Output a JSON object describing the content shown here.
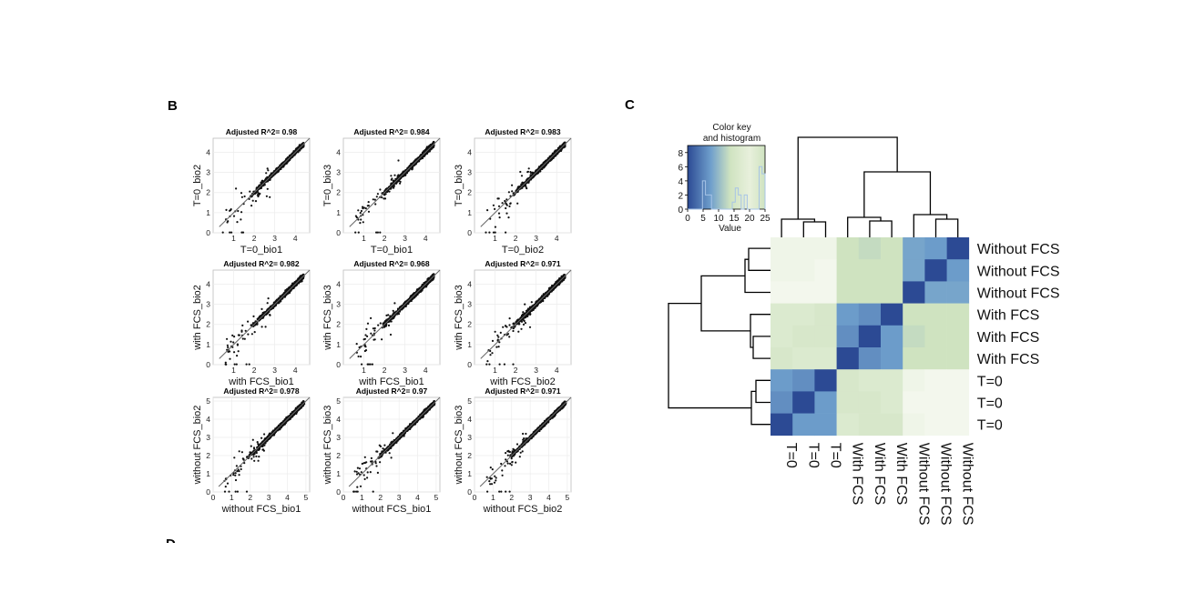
{
  "panels": {
    "b_label": "B",
    "c_label": "C",
    "d_label_partial": "D"
  },
  "chart_data": [
    {
      "type": "scatter",
      "panel": "B",
      "grid_rows": 3,
      "grid_cols": 3,
      "plots": [
        {
          "title": "Adjusted R^2= 0.98",
          "xlabel": "T=0_bio1",
          "ylabel": "T=0_bio2",
          "xticks": [
            1,
            2,
            3,
            4
          ],
          "yticks": [
            0,
            1,
            2,
            3,
            4
          ],
          "range": [
            0,
            4.7
          ],
          "fit_slope": 1.0,
          "fit_intercept": 0.0,
          "seed": 11
        },
        {
          "title": "Adjusted R^2= 0.984",
          "xlabel": "T=0_bio1",
          "ylabel": "T=0_bio3",
          "xticks": [
            1,
            2,
            3,
            4
          ],
          "yticks": [
            0,
            1,
            2,
            3,
            4
          ],
          "range": [
            0,
            4.7
          ],
          "fit_slope": 1.0,
          "fit_intercept": 0.0,
          "seed": 23
        },
        {
          "title": "Adjusted R^2= 0.983",
          "xlabel": "T=0_bio2",
          "ylabel": "T=0_bio3",
          "xticks": [
            1,
            2,
            3,
            4
          ],
          "yticks": [
            0,
            1,
            2,
            3,
            4
          ],
          "range": [
            0,
            4.7
          ],
          "fit_slope": 1.0,
          "fit_intercept": 0.0,
          "seed": 37
        },
        {
          "title": "Adjusted R^2= 0.982",
          "xlabel": "with FCS_bio1",
          "ylabel": "with FCS_bio2",
          "xticks": [
            1,
            2,
            3,
            4
          ],
          "yticks": [
            0,
            1,
            2,
            3,
            4
          ],
          "range": [
            0,
            4.7
          ],
          "fit_slope": 1.0,
          "fit_intercept": 0.0,
          "seed": 41
        },
        {
          "title": "Adjusted R^2= 0.968",
          "xlabel": "with FCS_bio1",
          "ylabel": "with FCS_bio3",
          "xticks": [
            1,
            2,
            3,
            4
          ],
          "yticks": [
            0,
            1,
            2,
            3,
            4
          ],
          "range": [
            0,
            4.7
          ],
          "fit_slope": 1.0,
          "fit_intercept": 0.0,
          "seed": 53
        },
        {
          "title": "Adjusted R^2= 0.971",
          "xlabel": "with FCS_bio2",
          "ylabel": "with FCS_bio3",
          "xticks": [
            1,
            2,
            3,
            4
          ],
          "yticks": [
            0,
            1,
            2,
            3,
            4
          ],
          "range": [
            0,
            4.7
          ],
          "fit_slope": 1.0,
          "fit_intercept": 0.0,
          "seed": 67
        },
        {
          "title": "Adjusted R^2= 0.978",
          "xlabel": "without FCS_bio1",
          "ylabel": "without FCS_bio2",
          "xticks": [
            0,
            1,
            2,
            3,
            4,
            5
          ],
          "yticks": [
            0,
            1,
            2,
            3,
            4,
            5
          ],
          "range": [
            0,
            5.2
          ],
          "fit_slope": 1.0,
          "fit_intercept": 0.0,
          "seed": 71
        },
        {
          "title": "Adjusted R^2= 0.97",
          "xlabel": "without FCS_bio1",
          "ylabel": "without FCS_bio3",
          "xticks": [
            0,
            1,
            2,
            3,
            4,
            5
          ],
          "yticks": [
            0,
            1,
            2,
            3,
            4,
            5
          ],
          "range": [
            0,
            5.2
          ],
          "fit_slope": 1.0,
          "fit_intercept": 0.0,
          "seed": 83
        },
        {
          "title": "Adjusted R^2= 0.971",
          "xlabel": "without FCS_bio2",
          "ylabel": "without FCS_bio3",
          "xticks": [
            0,
            1,
            2,
            3,
            4,
            5
          ],
          "yticks": [
            0,
            1,
            2,
            3,
            4,
            5
          ],
          "range": [
            0,
            5.2
          ],
          "fit_slope": 1.0,
          "fit_intercept": 0.0,
          "seed": 97
        }
      ]
    },
    {
      "type": "heatmap",
      "panel": "C",
      "row_labels": [
        "Without FCS",
        "Without FCS",
        "Without FCS",
        "With FCS",
        "With FCS",
        "With FCS",
        "T=0",
        "T=0",
        "T=0"
      ],
      "col_labels": [
        "T=0",
        "T=0",
        "T=0",
        "With FCS",
        "With FCS",
        "With FCS",
        "Without FCS",
        "Without FCS",
        "Without FCS"
      ],
      "values": [
        [
          2,
          2,
          2,
          10,
          11,
          10,
          18,
          19,
          25
        ],
        [
          2,
          2,
          1,
          10,
          10,
          10,
          18,
          25,
          19
        ],
        [
          1,
          1,
          1,
          10,
          10,
          10,
          25,
          18,
          18
        ],
        [
          7,
          7,
          8,
          19,
          20,
          25,
          10,
          10,
          10
        ],
        [
          7,
          8,
          8,
          20,
          25,
          19,
          11,
          10,
          10
        ],
        [
          8,
          7,
          7,
          25,
          20,
          19,
          10,
          10,
          10
        ],
        [
          19,
          20,
          25,
          8,
          7,
          7,
          2,
          1,
          1
        ],
        [
          20,
          25,
          19,
          8,
          8,
          7,
          1,
          1,
          1
        ],
        [
          25,
          19,
          19,
          7,
          8,
          8,
          2,
          1,
          1
        ]
      ],
      "color_key": {
        "title_line1": "Color key",
        "title_line2": "and histogram",
        "xlabel": "Value",
        "xticks": [
          0,
          5,
          10,
          15,
          20,
          25
        ],
        "yticks": [
          0,
          2,
          4,
          6,
          8
        ],
        "value_range": [
          0,
          25
        ],
        "hist_bins": [
          0,
          0,
          0,
          0,
          0,
          4,
          2,
          2,
          0,
          0,
          0,
          0,
          0,
          0,
          0,
          1,
          3,
          2,
          0,
          2,
          0,
          0,
          0,
          0,
          6,
          5
        ]
      },
      "colors": [
        "#f7f9f2",
        "#cfe3c0",
        "#6f9fcc",
        "#2c4a94"
      ]
    }
  ]
}
